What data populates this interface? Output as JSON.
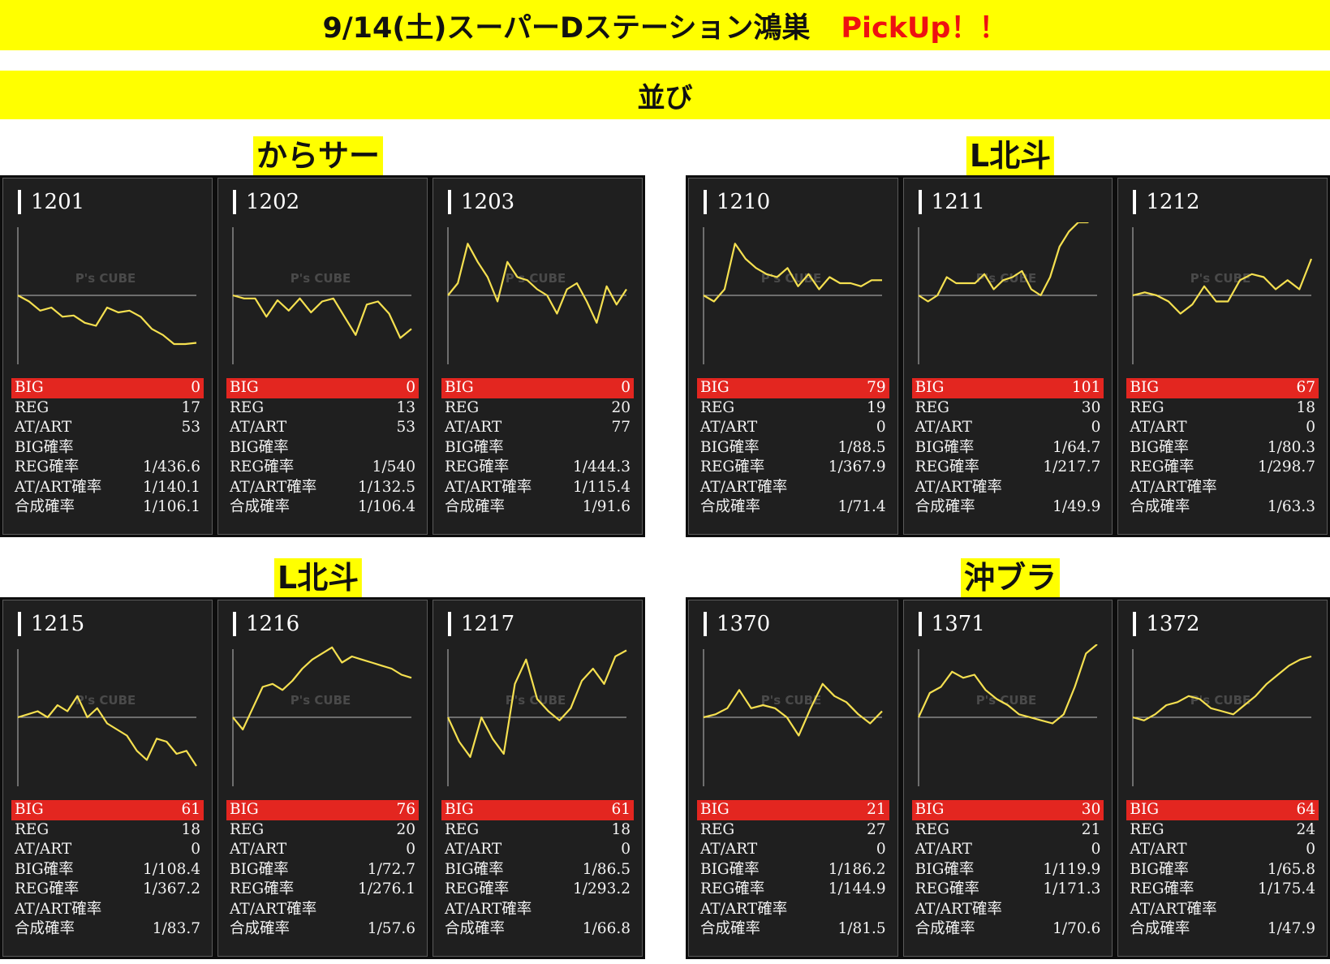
{
  "header": {
    "title": "9/14(土)スーパーDステーション鴻巣",
    "pickup": "PickUp！！",
    "subtitle": "並び"
  },
  "colors": {
    "banner": "#ffff00",
    "pickup": "#ee1111",
    "big_row": "#e32620",
    "line": "#f5e050",
    "panel": "#1f1f1f"
  },
  "watermark": "P's CUBE",
  "stat_labels": [
    "BIG",
    "REG",
    "AT/ART",
    "BIG確率",
    "REG確率",
    "AT/ART確率",
    "合成確率"
  ],
  "groups": [
    {
      "label": "からサー",
      "machines": [
        {
          "number": "1201",
          "stats": [
            "0",
            "17",
            "53",
            "",
            "1/436.6",
            "1/140.1",
            "1/106.1"
          ]
        },
        {
          "number": "1202",
          "stats": [
            "0",
            "13",
            "53",
            "",
            "1/540",
            "1/132.5",
            "1/106.4"
          ]
        },
        {
          "number": "1203",
          "stats": [
            "0",
            "20",
            "77",
            "",
            "1/444.3",
            "1/115.4",
            "1/91.6"
          ]
        }
      ]
    },
    {
      "label": "L北斗",
      "machines": [
        {
          "number": "1210",
          "stats": [
            "79",
            "19",
            "0",
            "1/88.5",
            "1/367.9",
            "",
            "1/71.4"
          ]
        },
        {
          "number": "1211",
          "stats": [
            "101",
            "30",
            "0",
            "1/64.7",
            "1/217.7",
            "",
            "1/49.9"
          ]
        },
        {
          "number": "1212",
          "stats": [
            "67",
            "18",
            "0",
            "1/80.3",
            "1/298.7",
            "",
            "1/63.3"
          ]
        }
      ]
    },
    {
      "label": "L北斗",
      "machines": [
        {
          "number": "1215",
          "stats": [
            "61",
            "18",
            "0",
            "1/108.4",
            "1/367.2",
            "",
            "1/83.7"
          ]
        },
        {
          "number": "1216",
          "stats": [
            "76",
            "20",
            "0",
            "1/72.7",
            "1/276.1",
            "",
            "1/57.6"
          ]
        },
        {
          "number": "1217",
          "stats": [
            "61",
            "18",
            "0",
            "1/86.5",
            "1/293.2",
            "",
            "1/66.8"
          ]
        }
      ]
    },
    {
      "label": "沖ブラ",
      "machines": [
        {
          "number": "1370",
          "stats": [
            "21",
            "27",
            "0",
            "1/186.2",
            "1/144.9",
            "",
            "1/81.5"
          ]
        },
        {
          "number": "1371",
          "stats": [
            "30",
            "21",
            "0",
            "1/119.9",
            "1/171.3",
            "",
            "1/70.6"
          ]
        },
        {
          "number": "1372",
          "stats": [
            "64",
            "24",
            "0",
            "1/65.8",
            "1/175.4",
            "",
            "1/47.9"
          ]
        }
      ]
    }
  ],
  "chart_data": [
    {
      "type": "line",
      "machine": "1201",
      "y": [
        0,
        -0.1,
        -0.25,
        -0.2,
        -0.35,
        -0.33,
        -0.45,
        -0.5,
        -0.2,
        -0.28,
        -0.25,
        -0.35,
        -0.55,
        -0.65,
        -0.8,
        -0.8,
        -0.78
      ]
    },
    {
      "type": "line",
      "machine": "1202",
      "y": [
        0,
        -0.05,
        -0.05,
        -0.35,
        -0.08,
        -0.25,
        -0.05,
        -0.28,
        -0.1,
        -0.05,
        -0.35,
        -0.65,
        -0.15,
        -0.1,
        -0.3,
        -0.7,
        -0.55
      ]
    },
    {
      "type": "line",
      "machine": "1203",
      "y": [
        0,
        0.2,
        0.85,
        0.55,
        0.3,
        -0.1,
        0.55,
        0.3,
        0.25,
        0.1,
        0.0,
        -0.3,
        0.1,
        0.2,
        -0.1,
        -0.45,
        0.15,
        -0.15,
        0.1
      ]
    },
    {
      "type": "line",
      "machine": "1210",
      "y": [
        0,
        -0.1,
        0.1,
        0.85,
        0.6,
        0.45,
        0.35,
        0.3,
        0.45,
        0.15,
        0.35,
        0.1,
        0.3,
        0.2,
        0.2,
        0.15,
        0.25,
        0.25
      ]
    },
    {
      "type": "line",
      "machine": "1211",
      "y": [
        0,
        -0.1,
        0.0,
        0.3,
        0.2,
        0.2,
        0.2,
        0.35,
        0.1,
        0.25,
        0.3,
        0.4,
        0.1,
        0.0,
        0.3,
        0.8,
        1.05,
        1.2,
        1.2,
        1.35
      ]
    },
    {
      "type": "line",
      "machine": "1212",
      "y": [
        0,
        0.05,
        0.0,
        -0.1,
        -0.3,
        -0.15,
        0.15,
        -0.1,
        -0.1,
        0.25,
        0.35,
        0.3,
        0.1,
        0.25,
        0.1,
        0.6
      ]
    },
    {
      "type": "line",
      "machine": "1215",
      "y": [
        0,
        0.05,
        0.1,
        0.0,
        0.2,
        0.1,
        0.35,
        0.0,
        0.15,
        -0.1,
        -0.2,
        -0.3,
        -0.55,
        -0.7,
        -0.35,
        -0.4,
        -0.6,
        -0.55,
        -0.8
      ]
    },
    {
      "type": "line",
      "machine": "1216",
      "y": [
        0,
        -0.2,
        0.15,
        0.5,
        0.55,
        0.45,
        0.6,
        0.8,
        0.95,
        1.05,
        1.15,
        0.9,
        1.0,
        0.95,
        0.9,
        0.85,
        0.8,
        0.7,
        0.65
      ]
    },
    {
      "type": "line",
      "machine": "1217",
      "y": [
        0,
        -0.4,
        -0.65,
        0.0,
        -0.35,
        -0.6,
        0.55,
        0.95,
        0.3,
        0.1,
        -0.05,
        0.15,
        0.6,
        0.8,
        0.55,
        1.0,
        1.1
      ]
    },
    {
      "type": "line",
      "machine": "1370",
      "y": [
        0,
        0.05,
        0.15,
        0.45,
        0.15,
        0.2,
        0.15,
        0.0,
        -0.3,
        0.15,
        0.55,
        0.35,
        0.25,
        0.05,
        -0.1,
        0.1
      ]
    },
    {
      "type": "line",
      "machine": "1371",
      "y": [
        0,
        0.4,
        0.5,
        0.75,
        0.65,
        0.7,
        0.45,
        0.3,
        0.2,
        0.05,
        0.0,
        -0.05,
        -0.1,
        0.05,
        0.5,
        1.05,
        1.2
      ]
    },
    {
      "type": "line",
      "machine": "1372",
      "y": [
        0,
        -0.05,
        0.05,
        0.2,
        0.25,
        0.35,
        0.3,
        0.15,
        0.1,
        0.05,
        0.2,
        0.35,
        0.55,
        0.7,
        0.85,
        0.95,
        1.0
      ]
    }
  ]
}
